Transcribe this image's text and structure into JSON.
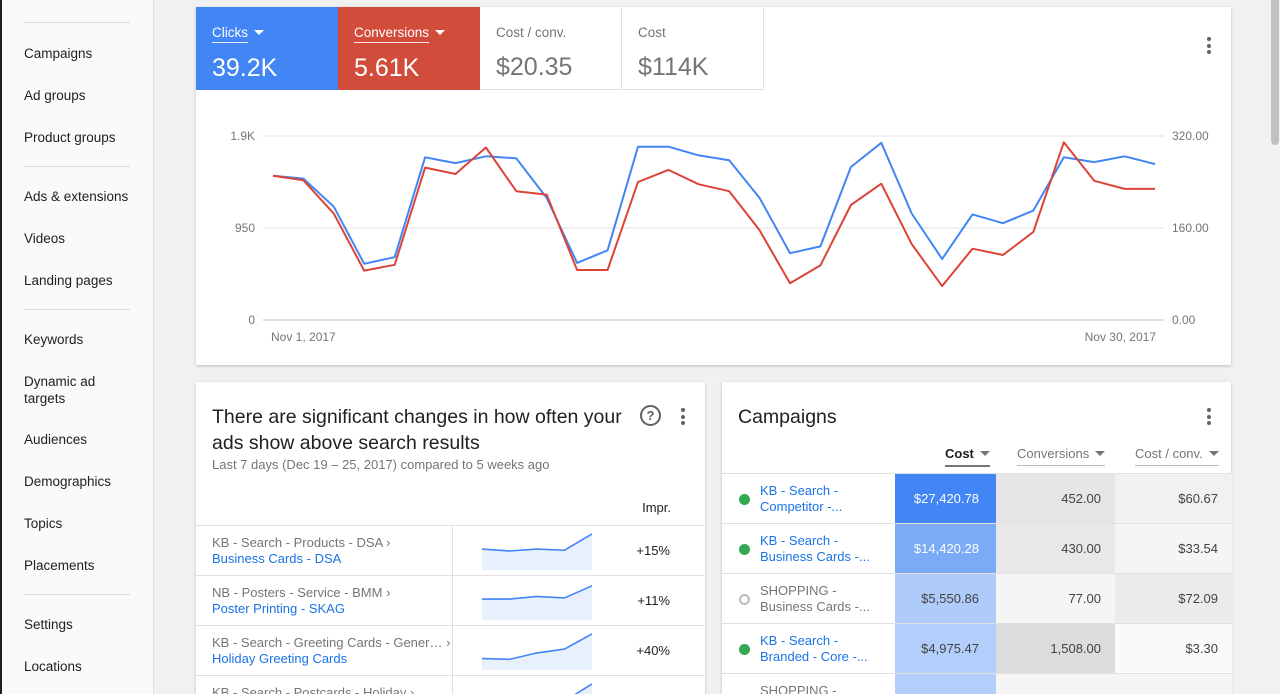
{
  "sidebar": {
    "items": [
      {
        "label": "Campaigns"
      },
      {
        "label": "Ad groups"
      },
      {
        "label": "Product groups"
      },
      {
        "label": "Ads & extensions"
      },
      {
        "label": "Videos"
      },
      {
        "label": "Landing pages"
      },
      {
        "label": "Keywords"
      },
      {
        "label": "Dynamic ad targets"
      },
      {
        "label": "Audiences"
      },
      {
        "label": "Demographics"
      },
      {
        "label": "Topics"
      },
      {
        "label": "Placements"
      },
      {
        "label": "Settings"
      },
      {
        "label": "Locations"
      }
    ]
  },
  "overview": {
    "metrics": [
      {
        "label": "Clicks",
        "value": "39.2K",
        "color": "#4285f4"
      },
      {
        "label": "Conversions",
        "value": "5.61K",
        "color": "#d24c3c"
      },
      {
        "label": "Cost / conv.",
        "value": "$20.35"
      },
      {
        "label": "Cost",
        "value": "$114K"
      }
    ]
  },
  "chart_data": {
    "type": "line",
    "x_start_label": "Nov 1, 2017",
    "x_end_label": "Nov 30, 2017",
    "y_left_ticks": [
      "1.9K",
      "950",
      "0"
    ],
    "y_right_ticks": [
      "320.00",
      "160.00",
      "0.00"
    ],
    "y_left_range": [
      0,
      1900
    ],
    "y_right_range": [
      0,
      320
    ],
    "grid": true,
    "series": [
      {
        "name": "Clicks",
        "axis": "left",
        "color": "#4285f4",
        "values": [
          1490,
          1460,
          1170,
          580,
          650,
          1680,
          1620,
          1690,
          1670,
          1260,
          590,
          720,
          1790,
          1790,
          1700,
          1650,
          1260,
          690,
          760,
          1580,
          1830,
          1100,
          630,
          1090,
          1000,
          1130,
          1680,
          1630,
          1690,
          1610
        ]
      },
      {
        "name": "Conversions",
        "axis": "right",
        "color": "#db4437",
        "values": [
          251,
          243,
          185,
          86,
          96,
          265,
          254,
          300,
          224,
          218,
          87,
          87,
          240,
          261,
          236,
          224,
          156,
          64,
          95,
          200,
          237,
          132,
          59,
          124,
          113,
          153,
          309,
          242,
          228,
          228
        ]
      }
    ]
  },
  "insight": {
    "title": "There are significant changes in how often your ads show above search results",
    "subtitle": "Last 7 days (Dec 19 – 25, 2017) compared to 5 weeks ago",
    "column_header": "Impr.",
    "rows": [
      {
        "line1": "KB - Search - Products - DSA ›",
        "line2": "Business Cards - DSA",
        "change": "+15%",
        "trend": [
          0.55,
          0.5,
          0.55,
          0.52,
          0.95
        ]
      },
      {
        "line1": "NB - Posters - Service - BMM ›",
        "line2": "Poster Printing - SKAG",
        "change": "+11%",
        "trend": [
          0.55,
          0.55,
          0.62,
          0.58,
          0.9
        ]
      },
      {
        "line1": "KB - Search - Greeting Cards - Gener… ›",
        "line2": "Holiday Greeting Cards",
        "change": "+40%",
        "trend": [
          0.3,
          0.28,
          0.45,
          0.55,
          0.95
        ]
      },
      {
        "line1": "KB - Search - Postcards - Holiday ›",
        "line2": "",
        "change": "",
        "trend": [
          0.2,
          0.25,
          0.3,
          0.5,
          0.95
        ]
      }
    ]
  },
  "campaigns": {
    "title": "Campaigns",
    "columns": [
      "Cost",
      "Conversions",
      "Cost / conv."
    ],
    "rows": [
      {
        "name": "KB - Search - Competitor -...",
        "status": "enabled",
        "cost": "$27,420.78",
        "conversions": "452.00",
        "cost_per_conv": "$60.67"
      },
      {
        "name": "KB - Search - Business Cards -...",
        "status": "enabled",
        "cost": "$14,420.28",
        "conversions": "430.00",
        "cost_per_conv": "$33.54"
      },
      {
        "name": "SHOPPING - Business Cards -...",
        "status": "removed",
        "cost": "$5,550.86",
        "conversions": "77.00",
        "cost_per_conv": "$72.09"
      },
      {
        "name": "KB - Search - Branded - Core -...",
        "status": "enabled",
        "cost": "$4,975.47",
        "conversions": "1,508.00",
        "cost_per_conv": "$3.30"
      },
      {
        "name": "SHOPPING -",
        "status": "removed",
        "cost": "",
        "conversions": "",
        "cost_per_conv": ""
      }
    ]
  }
}
